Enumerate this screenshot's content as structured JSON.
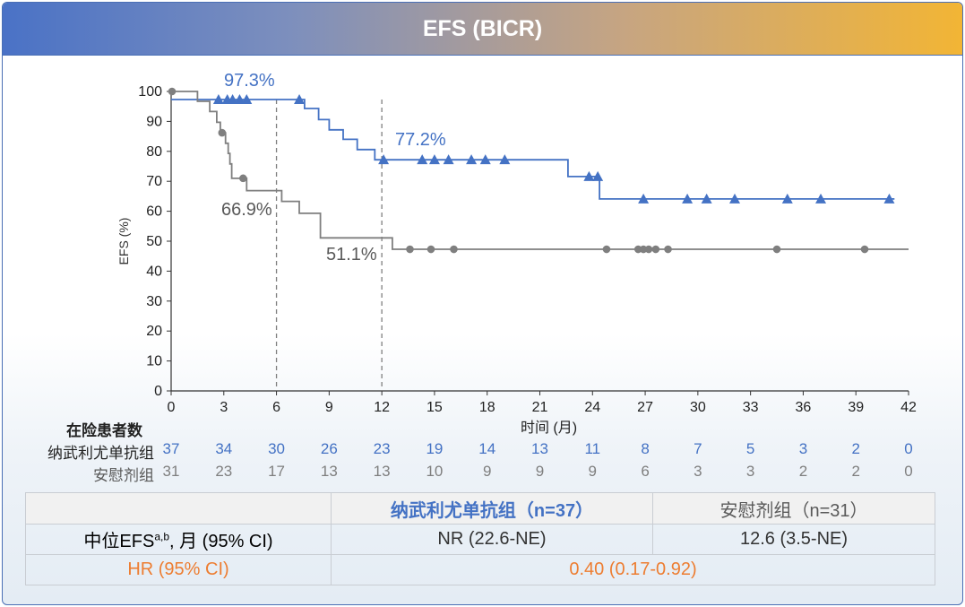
{
  "header": {
    "title": "EFS (BICR)"
  },
  "colors": {
    "treatment": "#4472c4",
    "placebo": "#7f7f7f",
    "hr": "#ed7d31"
  },
  "chart_data": {
    "type": "line",
    "subtype": "kaplan-meier",
    "ylabel": "EFS (%)",
    "xlabel": "时间 (月)",
    "xlim": [
      0,
      42
    ],
    "ylim": [
      0,
      100
    ],
    "x_ticks": [
      0,
      3,
      6,
      9,
      12,
      15,
      18,
      21,
      24,
      27,
      30,
      33,
      36,
      39,
      42
    ],
    "y_ticks": [
      0,
      10,
      20,
      30,
      40,
      50,
      60,
      70,
      80,
      90,
      100
    ],
    "grid": false,
    "reference_lines_x": [
      6,
      12
    ],
    "series": [
      {
        "name": "纳武利尤单抗组",
        "color": "#4472c4",
        "marker": "triangle",
        "steps": [
          [
            0,
            97.3
          ],
          [
            7.6,
            97.3
          ],
          [
            7.6,
            94.3
          ],
          [
            8.4,
            94.3
          ],
          [
            8.4,
            90.6
          ],
          [
            9.0,
            90.6
          ],
          [
            9.0,
            87.2
          ],
          [
            9.8,
            87.2
          ],
          [
            9.8,
            84.0
          ],
          [
            10.6,
            84.0
          ],
          [
            10.6,
            80.6
          ],
          [
            11.6,
            80.6
          ],
          [
            11.6,
            77.2
          ],
          [
            22.6,
            77.2
          ],
          [
            22.6,
            71.6
          ],
          [
            24.4,
            71.6
          ],
          [
            24.4,
            64.1
          ],
          [
            41.2,
            64.1
          ]
        ],
        "censored": [
          [
            2.7,
            97.3
          ],
          [
            3.2,
            97.3
          ],
          [
            3.5,
            97.3
          ],
          [
            3.9,
            97.3
          ],
          [
            4.3,
            97.3
          ],
          [
            7.3,
            97.3
          ],
          [
            12.1,
            77.2
          ],
          [
            14.3,
            77.2
          ],
          [
            15.0,
            77.2
          ],
          [
            15.8,
            77.2
          ],
          [
            17.1,
            77.2
          ],
          [
            17.9,
            77.2
          ],
          [
            19.0,
            77.2
          ],
          [
            23.8,
            71.6
          ],
          [
            24.3,
            71.6
          ],
          [
            26.9,
            64.1
          ],
          [
            29.4,
            64.1
          ],
          [
            30.5,
            64.1
          ],
          [
            32.1,
            64.1
          ],
          [
            35.1,
            64.1
          ],
          [
            37.0,
            64.1
          ],
          [
            40.9,
            64.1
          ]
        ]
      },
      {
        "name": "安慰剂组",
        "color": "#7f7f7f",
        "marker": "circle",
        "steps": [
          [
            0,
            100
          ],
          [
            1.5,
            100
          ],
          [
            1.5,
            96.7
          ],
          [
            2.2,
            96.7
          ],
          [
            2.2,
            93.3
          ],
          [
            2.6,
            93.3
          ],
          [
            2.6,
            89.7
          ],
          [
            2.8,
            89.7
          ],
          [
            2.8,
            86.2
          ],
          [
            3.1,
            86.2
          ],
          [
            3.1,
            82.7
          ],
          [
            3.25,
            82.7
          ],
          [
            3.25,
            79.3
          ],
          [
            3.35,
            79.3
          ],
          [
            3.35,
            75.8
          ],
          [
            3.45,
            75.8
          ],
          [
            3.45,
            71.0
          ],
          [
            4.3,
            71.0
          ],
          [
            4.3,
            66.9
          ],
          [
            6.3,
            66.9
          ],
          [
            6.3,
            63.3
          ],
          [
            7.3,
            63.3
          ],
          [
            7.3,
            59.3
          ],
          [
            8.5,
            59.3
          ],
          [
            8.5,
            51.1
          ],
          [
            12.6,
            51.1
          ],
          [
            12.6,
            47.3
          ],
          [
            42,
            47.3
          ]
        ],
        "censored": [
          [
            0.05,
            100
          ],
          [
            2.9,
            86.2
          ],
          [
            4.1,
            71.0
          ],
          [
            13.6,
            47.3
          ],
          [
            14.8,
            47.3
          ],
          [
            16.1,
            47.3
          ],
          [
            24.8,
            47.3
          ],
          [
            26.6,
            47.3
          ],
          [
            26.9,
            47.3
          ],
          [
            27.2,
            47.3
          ],
          [
            27.6,
            47.3
          ],
          [
            28.3,
            47.3
          ],
          [
            34.5,
            47.3
          ],
          [
            39.5,
            47.3
          ]
        ]
      }
    ],
    "annotations": [
      {
        "text": "97.3%",
        "color": "#4472c4",
        "near": [
          4.5,
          97.3
        ]
      },
      {
        "text": "77.2%",
        "color": "#4472c4",
        "near": [
          14.5,
          77.2
        ]
      },
      {
        "text": "66.9%",
        "color": "#595959",
        "near": [
          4.3,
          66.9
        ]
      },
      {
        "text": "51.1%",
        "color": "#595959",
        "near": [
          10.2,
          51.1
        ]
      }
    ]
  },
  "risk_table": {
    "title": "在险患者数",
    "rows": [
      {
        "label": "纳武利尤单抗组",
        "color": "#4472c4",
        "values": [
          "37",
          "34",
          "30",
          "26",
          "23",
          "19",
          "14",
          "13",
          "11",
          "8",
          "7",
          "5",
          "3",
          "2",
          "0"
        ]
      },
      {
        "label": "安慰剂组",
        "color": "#7f7f7f",
        "values": [
          "31",
          "23",
          "17",
          "13",
          "13",
          "10",
          "9",
          "9",
          "9",
          "6",
          "3",
          "3",
          "2",
          "2",
          "0"
        ]
      }
    ]
  },
  "summary_table": {
    "header": [
      "",
      "纳武利尤单抗组（n=37）",
      "安慰剂组（n=31）"
    ],
    "rows": [
      {
        "label_main": "中位EFS",
        "label_sup": "a,b",
        "label_tail": ", 月 (95% CI)",
        "treatment": "NR (22.6-NE)",
        "placebo": "12.6 (3.5-NE)"
      },
      {
        "label": "HR (95% CI)",
        "value": "0.40 (0.17-0.92)"
      }
    ]
  }
}
